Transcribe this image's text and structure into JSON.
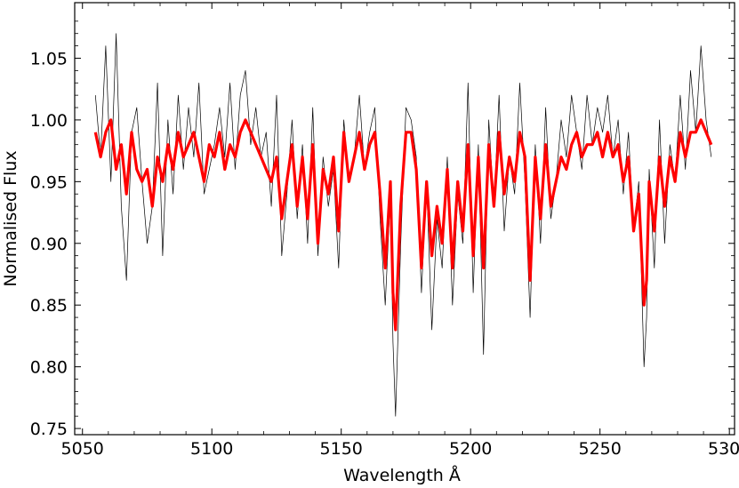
{
  "chart_data": {
    "type": "line",
    "title": "",
    "xlabel": "Wavelength Å",
    "ylabel": "Normalised Flux",
    "xlim": [
      5047,
      5302
    ],
    "ylim": [
      0.745,
      1.095
    ],
    "x_ticks": [
      5050,
      5100,
      5150,
      5200,
      5250,
      5300
    ],
    "y_ticks": [
      0.75,
      0.8,
      0.85,
      0.9,
      0.95,
      1.0,
      1.05
    ],
    "x_tick_labels": [
      "5050",
      "5100",
      "5150",
      "5200",
      "5250",
      "5300"
    ],
    "y_tick_labels": [
      "0.75",
      "0.80",
      "0.85",
      "0.90",
      "0.95",
      "1.00",
      "1.05"
    ],
    "grid": false,
    "series": [
      {
        "color": "#000000",
        "style": "noisy observed spectrum",
        "x": [
          5055,
          5057,
          5059,
          5061,
          5063,
          5065,
          5067,
          5069,
          5071,
          5073,
          5075,
          5077,
          5079,
          5081,
          5083,
          5085,
          5087,
          5089,
          5091,
          5093,
          5095,
          5097,
          5099,
          5101,
          5103,
          5105,
          5107,
          5109,
          5111,
          5113,
          5115,
          5117,
          5119,
          5121,
          5123,
          5125,
          5127,
          5129,
          5131,
          5133,
          5135,
          5137,
          5139,
          5141,
          5143,
          5145,
          5147,
          5149,
          5151,
          5153,
          5155,
          5157,
          5159,
          5161,
          5163,
          5165,
          5167,
          5169,
          5170,
          5171,
          5173,
          5175,
          5177,
          5179,
          5181,
          5183,
          5185,
          5187,
          5189,
          5191,
          5193,
          5195,
          5197,
          5199,
          5201,
          5203,
          5205,
          5207,
          5209,
          5211,
          5213,
          5215,
          5217,
          5219,
          5221,
          5223,
          5225,
          5227,
          5229,
          5231,
          5233,
          5235,
          5237,
          5239,
          5241,
          5243,
          5245,
          5247,
          5249,
          5251,
          5253,
          5255,
          5257,
          5259,
          5261,
          5263,
          5265,
          5267,
          5268,
          5269,
          5271,
          5273,
          5275,
          5277,
          5279,
          5281,
          5283,
          5285,
          5287,
          5289,
          5291,
          5293
        ],
        "values": [
          1.02,
          0.97,
          1.06,
          0.95,
          1.07,
          0.93,
          0.87,
          0.99,
          1.01,
          0.95,
          0.9,
          0.93,
          1.03,
          0.89,
          1.0,
          0.94,
          1.02,
          0.96,
          1.01,
          0.97,
          1.03,
          0.94,
          0.96,
          0.98,
          1.01,
          0.97,
          1.03,
          0.96,
          1.02,
          1.04,
          0.98,
          1.01,
          0.97,
          0.99,
          0.93,
          1.02,
          0.89,
          0.94,
          1.0,
          0.92,
          0.98,
          0.9,
          1.01,
          0.89,
          0.97,
          0.93,
          0.96,
          0.88,
          1.0,
          0.95,
          0.97,
          1.02,
          0.96,
          0.99,
          1.01,
          0.92,
          0.85,
          0.94,
          0.82,
          0.76,
          0.9,
          1.01,
          1.0,
          0.97,
          0.86,
          0.95,
          0.83,
          0.92,
          0.88,
          0.97,
          0.85,
          0.94,
          0.9,
          1.03,
          0.86,
          0.98,
          0.81,
          1.0,
          0.93,
          1.02,
          0.91,
          0.97,
          0.94,
          1.03,
          0.95,
          0.84,
          0.98,
          0.9,
          1.01,
          0.92,
          0.95,
          1.0,
          0.97,
          1.02,
          0.99,
          0.96,
          1.02,
          0.98,
          1.01,
          0.99,
          1.02,
          0.97,
          1.0,
          0.94,
          0.99,
          0.91,
          0.95,
          0.8,
          0.84,
          0.96,
          0.88,
          1.0,
          0.9,
          0.98,
          0.95,
          1.02,
          0.96,
          1.04,
          0.99,
          1.06,
          1.0,
          0.97
        ]
      },
      {
        "color": "#ff0000",
        "style": "model fit",
        "x": [
          5055,
          5057,
          5059,
          5061,
          5063,
          5065,
          5067,
          5069,
          5071,
          5073,
          5075,
          5077,
          5079,
          5081,
          5083,
          5085,
          5087,
          5089,
          5091,
          5093,
          5095,
          5097,
          5099,
          5101,
          5103,
          5105,
          5107,
          5109,
          5111,
          5113,
          5115,
          5117,
          5119,
          5121,
          5123,
          5125,
          5127,
          5129,
          5131,
          5133,
          5135,
          5137,
          5139,
          5141,
          5143,
          5145,
          5147,
          5149,
          5151,
          5153,
          5155,
          5157,
          5159,
          5161,
          5163,
          5165,
          5167,
          5169,
          5170,
          5171,
          5173,
          5175,
          5177,
          5179,
          5181,
          5183,
          5185,
          5187,
          5189,
          5191,
          5193,
          5195,
          5197,
          5199,
          5201,
          5203,
          5205,
          5207,
          5209,
          5211,
          5213,
          5215,
          5217,
          5219,
          5221,
          5223,
          5225,
          5227,
          5229,
          5231,
          5233,
          5235,
          5237,
          5239,
          5241,
          5243,
          5245,
          5247,
          5249,
          5251,
          5253,
          5255,
          5257,
          5259,
          5261,
          5263,
          5265,
          5267,
          5268,
          5269,
          5271,
          5273,
          5275,
          5277,
          5279,
          5281,
          5283,
          5285,
          5287,
          5289,
          5291,
          5293
        ],
        "values": [
          0.99,
          0.97,
          0.99,
          1.0,
          0.96,
          0.98,
          0.94,
          0.99,
          0.96,
          0.95,
          0.96,
          0.93,
          0.97,
          0.95,
          0.98,
          0.96,
          0.99,
          0.97,
          0.98,
          0.99,
          0.97,
          0.95,
          0.98,
          0.97,
          0.99,
          0.96,
          0.98,
          0.97,
          0.99,
          1.0,
          0.99,
          0.98,
          0.97,
          0.96,
          0.95,
          0.97,
          0.92,
          0.95,
          0.98,
          0.93,
          0.97,
          0.92,
          0.98,
          0.9,
          0.96,
          0.94,
          0.97,
          0.91,
          0.99,
          0.95,
          0.97,
          0.99,
          0.96,
          0.98,
          0.99,
          0.94,
          0.88,
          0.95,
          0.86,
          0.83,
          0.93,
          0.99,
          0.99,
          0.96,
          0.88,
          0.95,
          0.89,
          0.93,
          0.9,
          0.96,
          0.88,
          0.95,
          0.91,
          0.98,
          0.89,
          0.97,
          0.88,
          0.98,
          0.93,
          0.99,
          0.94,
          0.97,
          0.95,
          0.99,
          0.97,
          0.87,
          0.97,
          0.92,
          0.98,
          0.93,
          0.95,
          0.97,
          0.96,
          0.98,
          0.99,
          0.97,
          0.98,
          0.98,
          0.99,
          0.97,
          0.99,
          0.97,
          0.98,
          0.95,
          0.97,
          0.91,
          0.94,
          0.85,
          0.87,
          0.95,
          0.91,
          0.97,
          0.93,
          0.97,
          0.95,
          0.99,
          0.97,
          0.99,
          0.99,
          1.0,
          0.99,
          0.98
        ]
      }
    ]
  }
}
